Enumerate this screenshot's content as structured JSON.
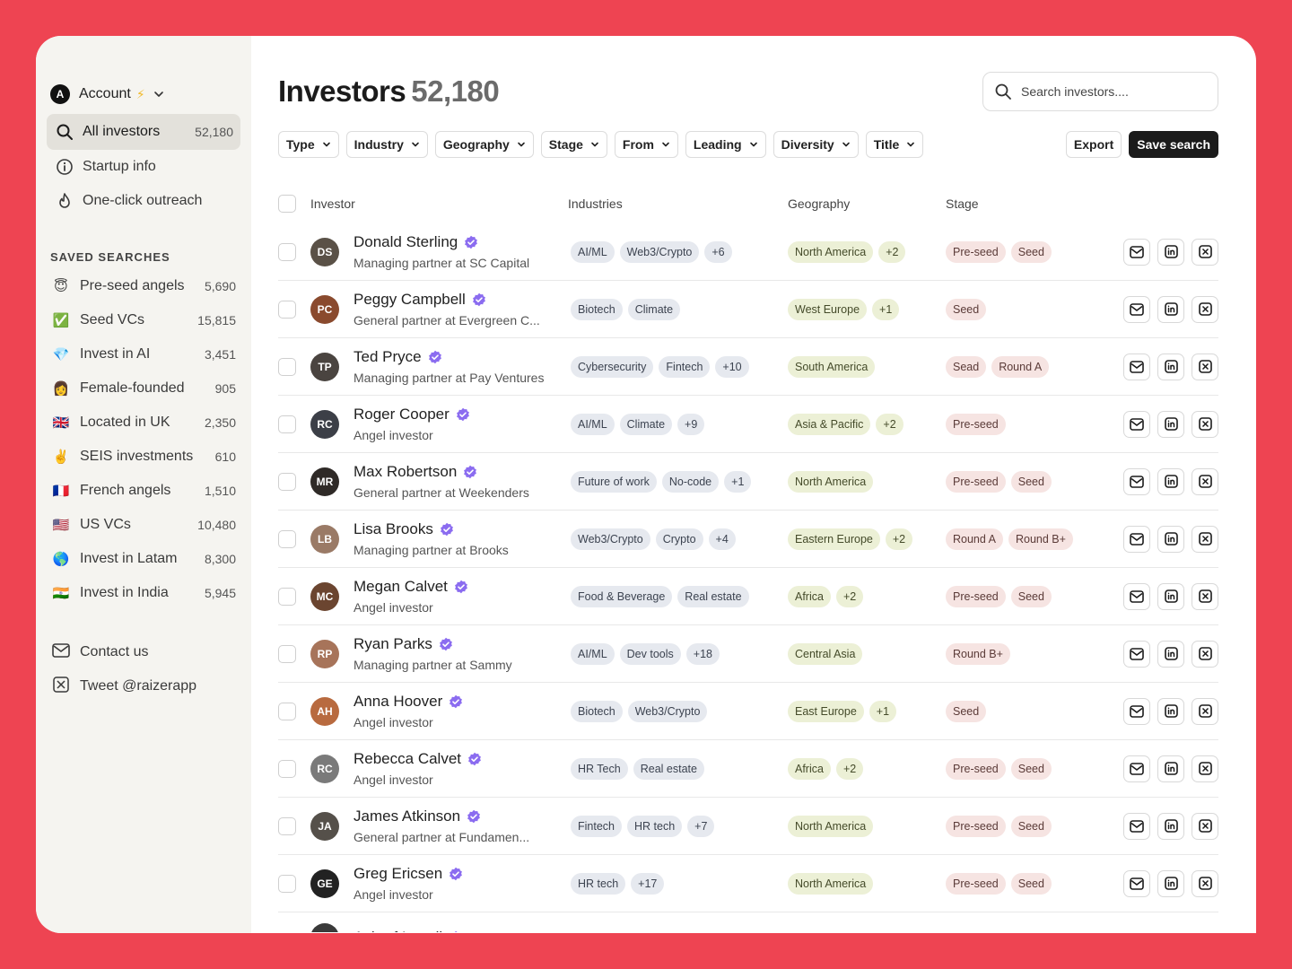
{
  "sidebar": {
    "account": {
      "initial": "A",
      "label": "Account",
      "bolt": "⚡"
    },
    "nav": [
      {
        "label": "All investors",
        "count": "52,180",
        "icon": "search-icon"
      },
      {
        "label": "Startup info",
        "icon": "info-icon"
      },
      {
        "label": "One-click outreach",
        "icon": "flame-icon"
      }
    ],
    "saved_title": "Saved searches",
    "saved": [
      {
        "emoji": "😇",
        "label": "Pre-seed angels",
        "count": "5,690"
      },
      {
        "emoji": "✅",
        "label": "Seed VCs",
        "count": "15,815"
      },
      {
        "emoji": "💎",
        "label": "Invest in AI",
        "count": "3,451"
      },
      {
        "emoji": "👩",
        "label": "Female-founded",
        "count": "905"
      },
      {
        "emoji": "🇬🇧",
        "label": "Located in UK",
        "count": "2,350"
      },
      {
        "emoji": "✌️",
        "label": "SEIS investments",
        "count": "610"
      },
      {
        "emoji": "🇫🇷",
        "label": "French angels",
        "count": "1,510"
      },
      {
        "emoji": "🇺🇸",
        "label": "US VCs",
        "count": "10,480"
      },
      {
        "emoji": "🌎",
        "label": "Invest in Latam",
        "count": "8,300"
      },
      {
        "emoji": "🇮🇳",
        "label": "Invest in India",
        "count": "5,945"
      }
    ],
    "links": [
      {
        "label": "Contact us",
        "icon": "mail-icon"
      },
      {
        "label": "Tweet @raizerapp",
        "icon": "x-logo-icon"
      }
    ]
  },
  "header": {
    "title": "Investors",
    "count": "52,180",
    "search_placeholder": "Search investors...."
  },
  "filters": [
    "Type",
    "Industry",
    "Geography",
    "Stage",
    "From",
    "Leading",
    "Diversity",
    "Title"
  ],
  "actions": {
    "export": "Export",
    "save": "Save search"
  },
  "columns": {
    "investor": "Investor",
    "industries": "Industries",
    "geography": "Geography",
    "stage": "Stage"
  },
  "rows": [
    {
      "name": "Donald Sterling",
      "role": "Managing partner at SC Capital",
      "avatar_color": "#5a5147",
      "industries": [
        "AI/ML",
        "Web3/Crypto",
        "+6"
      ],
      "geography": [
        "North America",
        "+2"
      ],
      "stage": [
        "Pre-seed",
        "Seed"
      ]
    },
    {
      "name": "Peggy Campbell",
      "role": "General partner at Evergreen C...",
      "avatar_color": "#8a4a2e",
      "industries": [
        "Biotech",
        "Climate"
      ],
      "geography": [
        "West Europe",
        "+1"
      ],
      "stage": [
        "Seed"
      ]
    },
    {
      "name": "Ted Pryce",
      "role": "Managing partner at Pay Ventures",
      "avatar_color": "#4a4440",
      "industries": [
        "Cybersecurity",
        "Fintech",
        "+10"
      ],
      "geography": [
        "South America"
      ],
      "stage": [
        "Sead",
        "Round A"
      ]
    },
    {
      "name": "Roger Cooper",
      "role": "Angel investor",
      "avatar_color": "#3c3f47",
      "industries": [
        "AI/ML",
        "Climate",
        "+9"
      ],
      "geography": [
        "Asia & Pacific",
        "+2"
      ],
      "stage": [
        "Pre-seed"
      ]
    },
    {
      "name": "Max Robertson",
      "role": "General partner at Weekenders",
      "avatar_color": "#2f2a27",
      "industries": [
        "Future of work",
        "No-code",
        "+1"
      ],
      "geography": [
        "North America"
      ],
      "stage": [
        "Pre-seed",
        "Seed"
      ]
    },
    {
      "name": "Lisa Brooks",
      "role": "Managing partner at Brooks",
      "avatar_color": "#9a7a66",
      "industries": [
        "Web3/Crypto",
        "Crypto",
        "+4"
      ],
      "geography": [
        "Eastern Europe",
        "+2"
      ],
      "stage": [
        "Round A",
        "Round B+"
      ]
    },
    {
      "name": "Megan Calvet",
      "role": "Angel investor",
      "avatar_color": "#6b4530",
      "industries": [
        "Food & Beverage",
        "Real estate"
      ],
      "geography": [
        "Africa",
        "+2"
      ],
      "stage": [
        "Pre-seed",
        "Seed"
      ]
    },
    {
      "name": "Ryan Parks",
      "role": "Managing partner at Sammy",
      "avatar_color": "#a7745a",
      "industries": [
        "AI/ML",
        "Dev tools",
        "+18"
      ],
      "geography": [
        "Central Asia"
      ],
      "stage": [
        "Round B+"
      ]
    },
    {
      "name": "Anna Hoover",
      "role": "Angel investor",
      "avatar_color": "#b86a3f",
      "industries": [
        "Biotech",
        "Web3/Crypto"
      ],
      "geography": [
        "East Europe",
        "+1"
      ],
      "stage": [
        "Seed"
      ]
    },
    {
      "name": "Rebecca Calvet",
      "role": "Angel investor",
      "avatar_color": "#7a7a7a",
      "industries": [
        "HR Tech",
        "Real estate"
      ],
      "geography": [
        "Africa",
        "+2"
      ],
      "stage": [
        "Pre-seed",
        "Seed"
      ]
    },
    {
      "name": "James Atkinson",
      "role": "General partner at Fundamen...",
      "avatar_color": "#55504a",
      "industries": [
        "Fintech",
        "HR tech",
        "+7"
      ],
      "geography": [
        "North America"
      ],
      "stage": [
        "Pre-seed",
        "Seed"
      ]
    },
    {
      "name": "Greg Ericsen",
      "role": "Angel investor",
      "avatar_color": "#222222",
      "industries": [
        "HR tech",
        "+17"
      ],
      "geography": [
        "North America"
      ],
      "stage": [
        "Pre-seed",
        "Seed"
      ]
    }
  ],
  "partial_row": {
    "name": "Ashraf Israeli"
  },
  "colors": {
    "background": "#ee4452",
    "verified": "#8b6cf0",
    "primary_button": "#1b1b1b"
  }
}
